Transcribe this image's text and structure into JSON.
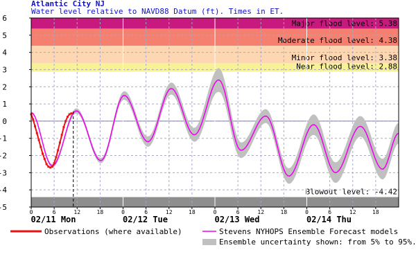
{
  "chart_data": {
    "type": "line",
    "title": "Atlantic City NJ",
    "subtitle": "Water level relative to NAVD88 Datum (ft). Times in ET.",
    "xlabel": "",
    "ylabel": "",
    "ylim": [
      -5,
      6
    ],
    "xlim": [
      0,
      96
    ],
    "y_ticks": [
      -5,
      -4,
      -3,
      -2,
      -1,
      0,
      1,
      2,
      3,
      4,
      5,
      6
    ],
    "x_ticks": [
      {
        "h": 0,
        "label": "0"
      },
      {
        "h": 6,
        "label": "6"
      },
      {
        "h": 12,
        "label": "12"
      },
      {
        "h": 18,
        "label": "18"
      },
      {
        "h": 24,
        "label": "0"
      },
      {
        "h": 30,
        "label": "6"
      },
      {
        "h": 36,
        "label": "12"
      },
      {
        "h": 42,
        "label": "18"
      },
      {
        "h": 48,
        "label": "0"
      },
      {
        "h": 54,
        "label": "6"
      },
      {
        "h": 60,
        "label": "12"
      },
      {
        "h": 66,
        "label": "18"
      },
      {
        "h": 72,
        "label": "0"
      },
      {
        "h": 78,
        "label": "6"
      },
      {
        "h": 84,
        "label": "12"
      },
      {
        "h": 90,
        "label": "18"
      }
    ],
    "day_labels": [
      {
        "h": 0,
        "label": "02/11 Mon"
      },
      {
        "h": 24,
        "label": "02/12 Tue"
      },
      {
        "h": 48,
        "label": "02/13 Wed"
      },
      {
        "h": 72,
        "label": "02/14 Thu"
      }
    ],
    "now_hour": 11,
    "grid": true,
    "flood_bands": [
      {
        "name": "Major flood level",
        "label": "Major flood level: 5.38",
        "value": 5.38,
        "top": 6,
        "color": "#c8197e"
      },
      {
        "name": "Moderate flood level",
        "label": "Moderate flood level: 4.38",
        "value": 4.38,
        "top": 5.38,
        "color": "#f58070"
      },
      {
        "name": "Minor flood level",
        "label": "Minor flood level: 3.38",
        "value": 3.38,
        "top": 4.38,
        "color": "#fcd7b2"
      },
      {
        "name": "Near flood level",
        "label": "Near flood level: 2.88",
        "value": 2.88,
        "top": 3.38,
        "color": "#f7f297"
      },
      {
        "name": "Blowout level",
        "label": "Blowout level: -4.42",
        "value": -4.42,
        "top": -4.42,
        "bottom": -5,
        "color": "#8e8e8e"
      }
    ],
    "series": [
      {
        "name": "Observations (where available)",
        "color": "#ee1111",
        "x": [
          0,
          0.5,
          1,
          1.5,
          2,
          2.5,
          3,
          3.5,
          4,
          4.5,
          5,
          5.5,
          6,
          6.5,
          7,
          7.5,
          8,
          8.5,
          9,
          9.5,
          10,
          10.5
        ],
        "values": [
          0.4,
          0.1,
          -0.3,
          -0.7,
          -1.1,
          -1.5,
          -1.9,
          -2.2,
          -2.5,
          -2.65,
          -2.7,
          -2.65,
          -2.45,
          -2.1,
          -1.7,
          -1.25,
          -0.8,
          -0.35,
          0.0,
          0.25,
          0.4,
          0.45
        ]
      },
      {
        "name": "Stevens NYHOPS Ensemble Forecast models",
        "color": "#ee00ee",
        "x": [
          0,
          5.5,
          11.8,
          18.2,
          24.3,
          30.5,
          36.6,
          42.6,
          49.0,
          54.8,
          61.3,
          67.3,
          73.8,
          79.5,
          86.0,
          91.8,
          96
        ],
        "values": [
          0.5,
          -2.6,
          0.6,
          -2.3,
          1.5,
          -1.2,
          1.9,
          -0.8,
          2.4,
          -1.7,
          0.3,
          -3.2,
          -0.2,
          -3.0,
          -0.3,
          -2.8,
          -0.7
        ]
      }
    ],
    "uncertainty": {
      "name": "Ensemble uncertainty shown: from 5% to 95%.",
      "color": "#c0c0c0",
      "x": [
        0,
        5.5,
        11.8,
        18.2,
        24.3,
        30.5,
        36.6,
        42.6,
        49.0,
        54.8,
        61.3,
        67.3,
        73.8,
        79.5,
        86.0,
        91.8,
        96
      ],
      "half_width": [
        0.05,
        0.1,
        0.15,
        0.15,
        0.25,
        0.3,
        0.35,
        0.4,
        0.7,
        0.45,
        0.4,
        0.45,
        0.6,
        0.6,
        0.6,
        0.6,
        0.6
      ]
    },
    "legend": {
      "placement": "bottom",
      "observations_label": "Observations (where available)",
      "forecast_label": "Stevens NYHOPS Ensemble Forecast models",
      "uncertainty_label": "Ensemble uncertainty shown: from 5% to 95%."
    }
  }
}
